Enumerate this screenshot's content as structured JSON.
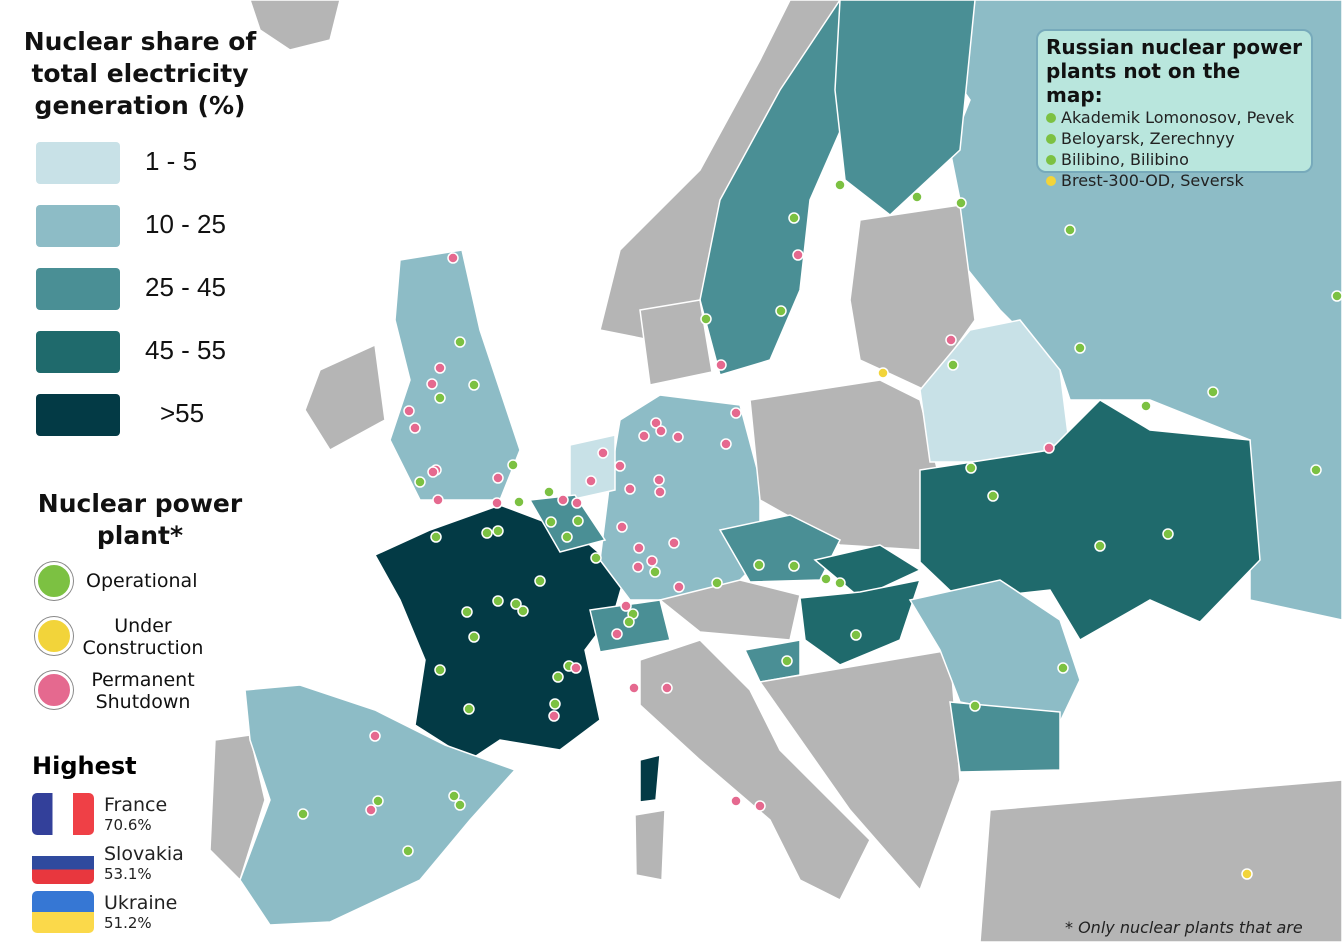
{
  "legend": {
    "title": "Nuclear share of total electricity generation (%)",
    "bins": [
      {
        "label": "1  -  5",
        "color": "#c8e1e7"
      },
      {
        "label": "10 - 25",
        "color": "#8dbcc6"
      },
      {
        "label": "25 - 45",
        "color": "#4a8f95"
      },
      {
        "label": "45 - 55",
        "color": "#1f6a6c"
      },
      {
        "label": ">55",
        "color": "#033a45"
      }
    ],
    "no_data_color": "#b5b5b5"
  },
  "plants": {
    "title": "Nuclear power plant*",
    "types": [
      {
        "label": "Operational",
        "color": "#7cc142",
        "icon": "radiation-icon"
      },
      {
        "label": "Under Construction",
        "color": "#f2d43a",
        "icon": "radiation-icon"
      },
      {
        "label": "Permanent Shutdown",
        "color": "#e5698f",
        "icon": "radiation-icon"
      }
    ]
  },
  "highest": {
    "title": "Highest",
    "items": [
      {
        "country": "France",
        "value": "70.6%",
        "flag": "france-flag"
      },
      {
        "country": "Slovakia",
        "value": "53.1%",
        "flag": "slovakia-flag"
      },
      {
        "country": "Ukraine",
        "value": "51.2%",
        "flag": "ukraine-flag"
      }
    ]
  },
  "russia_box": {
    "title": "Russian nuclear power plants not on the map:",
    "items": [
      {
        "name": "Akademik Lomonosov, Pevek",
        "status": "operational"
      },
      {
        "name": "Beloyarsk, Zerechnyy",
        "status": "operational"
      },
      {
        "name": "Bilibino, Bilibino",
        "status": "operational"
      },
      {
        "name": "Brest-300-OD, Seversk",
        "status": "under-construction"
      }
    ]
  },
  "footnote": "* Only nuclear plants that are"
}
